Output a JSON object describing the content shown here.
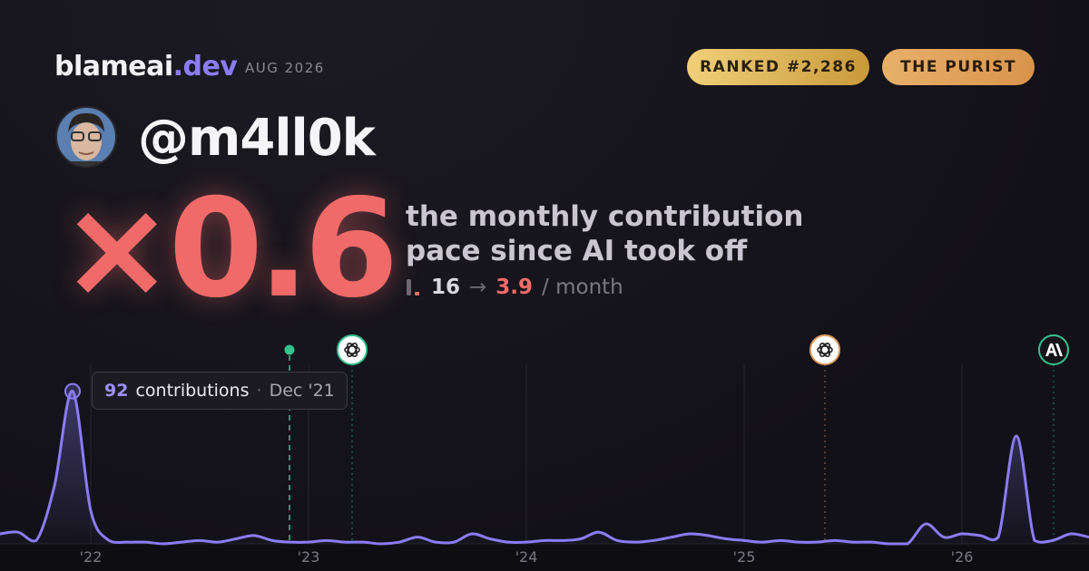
{
  "brand": {
    "name": "blameai",
    "tld": ".dev"
  },
  "period": "AUG 2026",
  "badges": [
    "RANKED #2,286",
    "THE PURIST"
  ],
  "username": "@m4ll0k",
  "multiplier": "×0.6",
  "description": [
    "the monthly contribution",
    "pace since AI took off"
  ],
  "pace": {
    "before": "16",
    "arrow": "→",
    "after": "3.9",
    "unit": "/ month"
  },
  "tooltip": {
    "unit": "contributions",
    "separator": "·",
    "date": "Dec '21"
  },
  "chart_data": {
    "type": "line",
    "categories": [
      null,
      null,
      null,
      null,
      null,
      "'22",
      null,
      null,
      null,
      null,
      null,
      null,
      null,
      null,
      null,
      null,
      null,
      "'23",
      null,
      null,
      null,
      null,
      null,
      null,
      null,
      null,
      null,
      null,
      null,
      "'24",
      null,
      null,
      null,
      null,
      null,
      null,
      null,
      null,
      null,
      null,
      null,
      "'25",
      null,
      null,
      null,
      null,
      null,
      null,
      null,
      null,
      null,
      null,
      null,
      "'26",
      null,
      null,
      null,
      null,
      null,
      null,
      null
    ],
    "series": [
      {
        "name": "contributions",
        "color": "#8b7cf6",
        "values": [
          6,
          7,
          2,
          35,
          92,
          20,
          2,
          1,
          1,
          0,
          1,
          2,
          1,
          3,
          5,
          2,
          1,
          1,
          2,
          1,
          1,
          0,
          1,
          4,
          1,
          1,
          6,
          3,
          1,
          1,
          2,
          2,
          3,
          7,
          2,
          1,
          2,
          4,
          6,
          5,
          3,
          2,
          1,
          2,
          1,
          1,
          2,
          1,
          1,
          0,
          0,
          12,
          4,
          6,
          5,
          4,
          65,
          2,
          2,
          6,
          4
        ]
      }
    ],
    "ylim": [
      0,
      100
    ],
    "grid": true
  }
}
